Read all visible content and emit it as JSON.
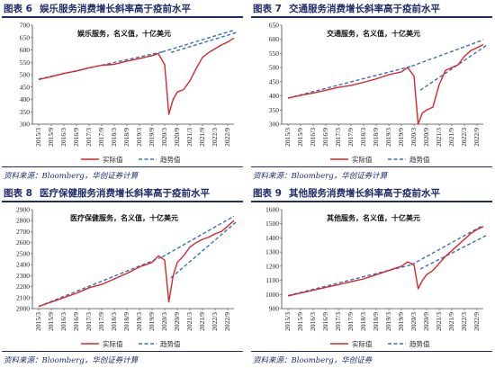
{
  "footer_note": "",
  "panels": [
    {
      "no": "图表 6",
      "title": "娱乐服务消费增长斜率高于疫前水平",
      "annotation": "娱乐服务，名义值，十亿美元",
      "source": "资料来源：Bloomberg，华创证券计算",
      "legend": {
        "actual": "实际值",
        "trend": "趋势值"
      }
    },
    {
      "no": "图表 7",
      "title": "交通服务消费增长斜率高于疫前水平",
      "annotation": "交通服务，名义值，十亿美元",
      "source": "资料来源：Bloomberg，华创证券计算",
      "legend": {
        "actual": "实际值",
        "trend": "趋势值"
      }
    },
    {
      "no": "图表 8",
      "title": "医疗保健服务消费增长斜率高于疫前水平",
      "annotation": "医疗保健服务，名义值，十亿美元",
      "source": "资料来源：Bloomberg，华创证券计算",
      "legend": {
        "actual": "实际值",
        "trend": "趋势值"
      }
    },
    {
      "no": "图表 9",
      "title": "其他服务消费增长斜率高于疫前水平",
      "annotation": "其他服务，名义值，十亿美元",
      "source": "资料来源：Bloomberg，华创证券",
      "legend": {
        "actual": "实际值",
        "trend": "趋势值"
      }
    }
  ],
  "colors": {
    "actual": "#d7262c",
    "trend": "#3b6fb6",
    "rule": "#1f2d6b"
  },
  "chart_data": [
    {
      "type": "line",
      "categories": [
        "2015/3",
        "2015/9",
        "2016/3",
        "2016/9",
        "2017/3",
        "2017/9",
        "2018/3",
        "2018/9",
        "2019/3",
        "2019/9",
        "2020/3",
        "2020/9",
        "2021/3",
        "2021/9",
        "2022/3",
        "2022/9"
      ],
      "ylim": [
        300,
        700
      ],
      "yticks": [
        300,
        350,
        400,
        450,
        500,
        550,
        600,
        650,
        700
      ],
      "series": [
        {
          "name": "实际值",
          "x": [
            0,
            1,
            2,
            3,
            4,
            5,
            6,
            7,
            8,
            9,
            9.5,
            10,
            10.33,
            10.67,
            11,
            11.5,
            12,
            12.5,
            13,
            13.5,
            14,
            14.5,
            15,
            15.5
          ],
          "y": [
            480,
            492,
            505,
            515,
            528,
            538,
            542,
            555,
            565,
            577,
            585,
            540,
            340,
            400,
            430,
            440,
            475,
            525,
            570,
            590,
            605,
            620,
            632,
            648
          ]
        },
        {
          "name": "趋势值",
          "segments": [
            {
              "x": [
                0,
                9.8
              ],
              "y": [
                482,
                592
              ]
            },
            {
              "x": [
                9.8,
                15.5
              ],
              "y": [
                592,
                680
              ]
            },
            {
              "x": [
                10.5,
                15.8
              ],
              "y": [
                590,
                672
              ]
            }
          ]
        }
      ]
    },
    {
      "type": "line",
      "categories": [
        "2015/3",
        "2015/9",
        "2016/3",
        "2016/9",
        "2017/3",
        "2017/9",
        "2018/3",
        "2018/9",
        "2019/3",
        "2019/9",
        "2020/3",
        "2020/9",
        "2021/3",
        "2021/9",
        "2022/3",
        "2022/9"
      ],
      "ylim": [
        300,
        650
      ],
      "yticks": [
        300,
        350,
        400,
        450,
        500,
        550,
        600,
        650
      ],
      "series": [
        {
          "name": "实际值",
          "x": [
            0,
            1,
            2,
            3,
            4,
            5,
            6,
            7,
            8,
            9,
            9.5,
            10,
            10.33,
            10.67,
            11,
            11.5,
            12,
            12.5,
            13,
            13.5,
            14,
            14.5,
            15,
            15.5
          ],
          "y": [
            392,
            402,
            410,
            420,
            430,
            437,
            448,
            460,
            475,
            485,
            500,
            470,
            300,
            340,
            350,
            360,
            440,
            490,
            500,
            510,
            540,
            560,
            570,
            582
          ]
        },
        {
          "name": "趋势值",
          "segments": [
            {
              "x": [
                0,
                9.8
              ],
              "y": [
                392,
                505
              ]
            },
            {
              "x": [
                9.8,
                15.5
              ],
              "y": [
                505,
                598
              ]
            },
            {
              "x": [
                10.5,
                15.8
              ],
              "y": [
                420,
                580
              ]
            }
          ]
        }
      ]
    },
    {
      "type": "line",
      "categories": [
        "2015/3",
        "2015/9",
        "2016/3",
        "2016/9",
        "2017/3",
        "2017/9",
        "2018/3",
        "2018/9",
        "2019/3",
        "2019/9",
        "2020/3",
        "2020/9",
        "2021/3",
        "2021/9",
        "2022/3",
        "2022/9"
      ],
      "ylim": [
        2000,
        2900
      ],
      "yticks": [
        2000,
        2100,
        2200,
        2300,
        2400,
        2500,
        2600,
        2700,
        2800,
        2900
      ],
      "series": [
        {
          "name": "实际值",
          "x": [
            0,
            1,
            2,
            3,
            4,
            5,
            6,
            7,
            8,
            9,
            9.5,
            10,
            10.33,
            10.67,
            11,
            11.5,
            12,
            12.5,
            13,
            13.5,
            14,
            14.5,
            15,
            15.5
          ],
          "y": [
            2020,
            2060,
            2100,
            2140,
            2190,
            2220,
            2270,
            2320,
            2380,
            2420,
            2480,
            2440,
            2060,
            2300,
            2420,
            2480,
            2560,
            2600,
            2630,
            2650,
            2680,
            2700,
            2750,
            2800
          ]
        },
        {
          "name": "趋势值",
          "segments": [
            {
              "x": [
                0,
                9.8
              ],
              "y": [
                2020,
                2470
              ]
            },
            {
              "x": [
                9.8,
                15.5
              ],
              "y": [
                2470,
                2840
              ]
            },
            {
              "x": [
                10.5,
                15.8
              ],
              "y": [
                2280,
                2800
              ]
            }
          ]
        }
      ]
    },
    {
      "type": "line",
      "categories": [
        "2015/3",
        "2015/9",
        "2016/3",
        "2016/9",
        "2017/3",
        "2017/9",
        "2018/3",
        "2018/9",
        "2019/3",
        "2019/9",
        "2020/3",
        "2020/9",
        "2021/3",
        "2021/9",
        "2022/3",
        "2022/9"
      ],
      "ylim": [
        900,
        1600
      ],
      "yticks": [
        900,
        1000,
        1100,
        1200,
        1300,
        1400,
        1500,
        1600
      ],
      "series": [
        {
          "name": "实际值",
          "x": [
            0,
            1,
            2,
            3,
            4,
            5,
            6,
            7,
            8,
            9,
            9.5,
            10,
            10.33,
            10.67,
            11,
            11.5,
            12,
            12.5,
            13,
            13.5,
            14,
            14.5,
            15,
            15.5
          ],
          "y": [
            990,
            1010,
            1030,
            1050,
            1070,
            1090,
            1110,
            1140,
            1170,
            1200,
            1230,
            1210,
            1040,
            1100,
            1140,
            1170,
            1220,
            1270,
            1310,
            1350,
            1390,
            1430,
            1460,
            1480
          ]
        },
        {
          "name": "趋势值",
          "segments": [
            {
              "x": [
                0,
                9.8
              ],
              "y": [
                992,
                1210
              ]
            },
            {
              "x": [
                9.8,
                15.5
              ],
              "y": [
                1210,
                1490
              ]
            },
            {
              "x": [
                10.5,
                15.8
              ],
              "y": [
                1180,
                1420
              ]
            }
          ]
        }
      ]
    }
  ]
}
